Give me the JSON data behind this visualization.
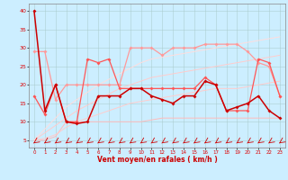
{
  "xlabel": "Vent moyen/en rafales ( km/h )",
  "background_color": "#cceeff",
  "grid_color": "#aacccc",
  "xlim": [
    -0.5,
    23.5
  ],
  "ylim": [
    3,
    42
  ],
  "yticks": [
    5,
    10,
    15,
    20,
    25,
    30,
    35,
    40
  ],
  "xticks": [
    0,
    1,
    2,
    3,
    4,
    5,
    6,
    7,
    8,
    9,
    10,
    11,
    12,
    13,
    14,
    15,
    16,
    17,
    18,
    19,
    20,
    21,
    22,
    23
  ],
  "lines": [
    {
      "y": [
        40,
        13,
        20,
        10,
        9.5,
        10,
        17,
        17,
        17,
        19,
        19,
        17,
        16,
        15,
        17,
        17,
        21,
        20,
        13,
        14,
        15,
        17,
        13,
        11
      ],
      "color": "#cc0000",
      "marker": "D",
      "markersize": 2.0,
      "linewidth": 1.1,
      "zorder": 5
    },
    {
      "y": [
        29,
        29,
        16,
        20,
        20,
        20,
        20,
        20,
        20,
        30,
        30,
        30,
        28,
        30,
        30,
        30,
        31,
        31,
        31,
        31,
        29,
        26,
        25,
        17
      ],
      "color": "#ff9999",
      "marker": "D",
      "markersize": 2.0,
      "linewidth": 0.9,
      "zorder": 3
    },
    {
      "y": [
        17,
        12,
        20,
        10,
        10,
        27,
        26,
        27,
        19,
        19,
        19,
        19,
        19,
        19,
        19,
        19,
        22,
        20,
        13,
        13,
        13,
        27,
        26,
        17
      ],
      "color": "#ff5555",
      "marker": "D",
      "markersize": 2.0,
      "linewidth": 0.9,
      "zorder": 4
    },
    {
      "y": [
        5,
        5,
        6,
        10,
        10,
        10,
        10,
        10,
        10,
        10,
        10,
        10.5,
        11,
        11,
        11,
        11,
        11,
        11,
        11,
        11,
        11,
        11,
        11,
        11
      ],
      "color": "#ffbbbb",
      "marker": null,
      "linewidth": 0.7,
      "zorder": 2
    },
    {
      "y": [
        5,
        5.5,
        6.5,
        8.5,
        10,
        11,
        12,
        13,
        14,
        15,
        15.5,
        16,
        16.5,
        17,
        17.5,
        18,
        18.5,
        19,
        19,
        19,
        19.5,
        20,
        20.5,
        21
      ],
      "color": "#ffcccc",
      "marker": null,
      "linewidth": 0.7,
      "zorder": 2
    },
    {
      "y": [
        5,
        7,
        9,
        11,
        13,
        14.5,
        16,
        17.5,
        19,
        20,
        21,
        22,
        22.5,
        23,
        23.5,
        24,
        24.5,
        25,
        25.5,
        26,
        26.5,
        27,
        27.5,
        28
      ],
      "color": "#ffcccc",
      "marker": null,
      "linewidth": 0.7,
      "zorder": 2
    },
    {
      "y": [
        5,
        8,
        11,
        14,
        16,
        18,
        20,
        21.5,
        23,
        24.5,
        26,
        27,
        27.5,
        28,
        28.5,
        29,
        29.5,
        30,
        30.5,
        31,
        31.5,
        32,
        32.5,
        33
      ],
      "color": "#ffdddd",
      "marker": null,
      "linewidth": 0.7,
      "zorder": 2
    }
  ],
  "arrow_color": "#cc0000"
}
